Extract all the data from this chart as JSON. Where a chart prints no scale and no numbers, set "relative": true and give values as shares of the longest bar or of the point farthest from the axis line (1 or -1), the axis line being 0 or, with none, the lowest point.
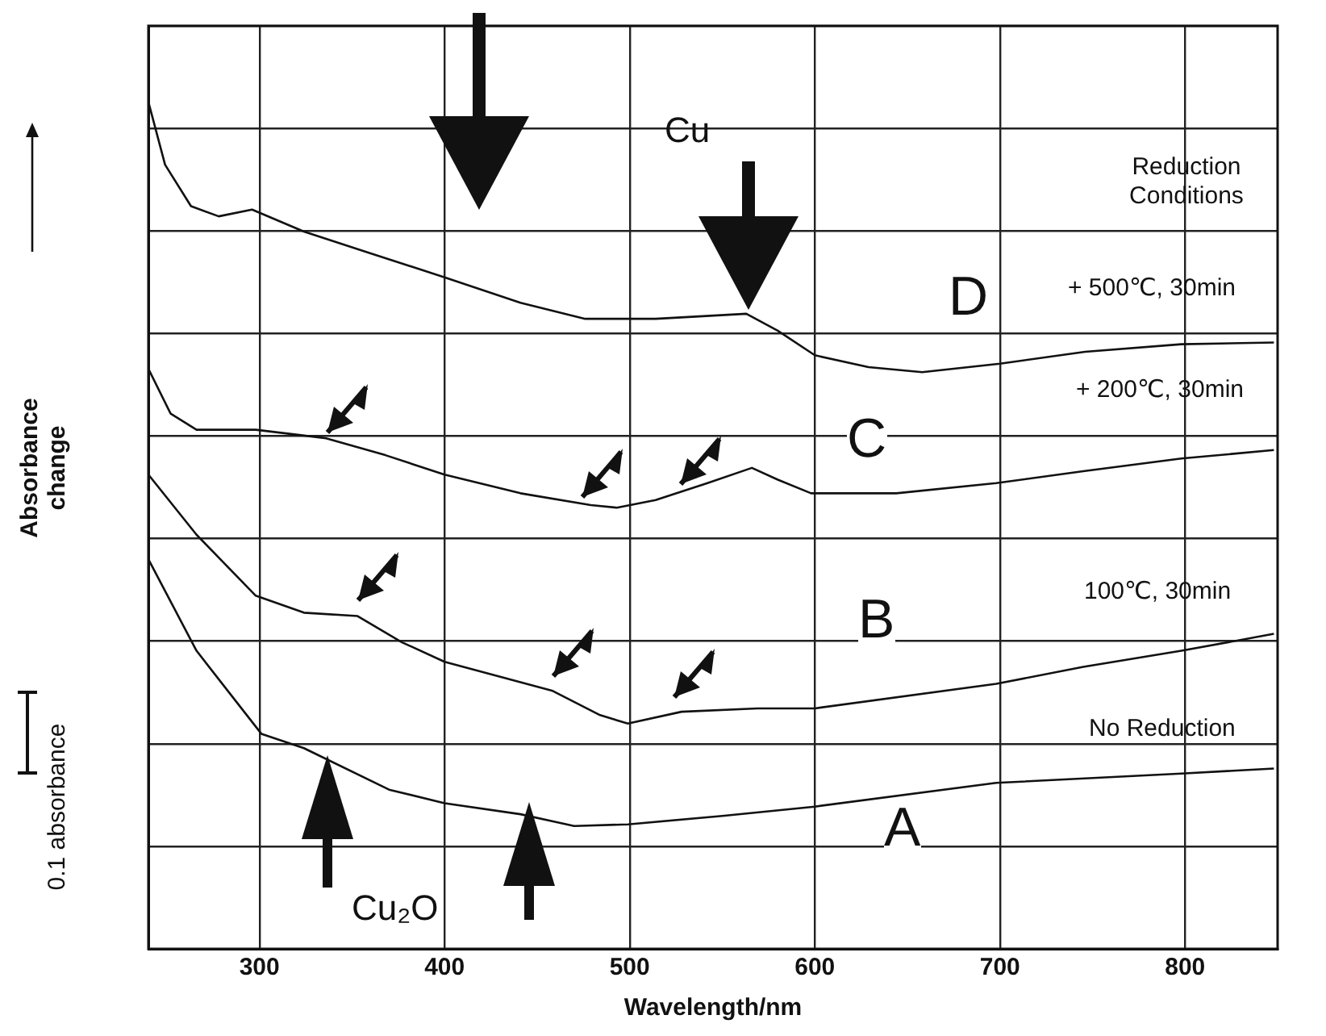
{
  "chart_data": {
    "type": "line",
    "xlabel": "Wavelength/nm",
    "ylabel": "Absorbance change",
    "relative": true,
    "grid": true,
    "xlim": [
      240,
      850
    ],
    "xticks": [
      300,
      400,
      500,
      600,
      700,
      800
    ],
    "series": [
      {
        "name": "A",
        "color": "#111111",
        "x": [
          240,
          266,
          301,
          324,
          370,
          400,
          441,
          470,
          499,
          550,
          600,
          698,
          798,
          848
        ],
        "values": [
          0.46,
          0.352,
          0.254,
          0.237,
          0.188,
          0.172,
          0.159,
          0.145,
          0.147,
          0.157,
          0.168,
          0.196,
          0.207,
          0.213
        ]
      },
      {
        "name": "B",
        "color": "#111111",
        "x": [
          240,
          266,
          298,
          324,
          353,
          377,
          400,
          458,
          484,
          499,
          528,
          569,
          600,
          698,
          745,
          798,
          848
        ],
        "values": [
          0.56,
          0.489,
          0.417,
          0.397,
          0.393,
          0.362,
          0.339,
          0.305,
          0.276,
          0.266,
          0.28,
          0.284,
          0.284,
          0.313,
          0.333,
          0.352,
          0.372
        ]
      },
      {
        "name": "C",
        "color": "#111111",
        "x": [
          240,
          252,
          266,
          298,
          336,
          368,
          400,
          441,
          479,
          493,
          514,
          542,
          566,
          580,
          598,
          644,
          698,
          745,
          798,
          848
        ],
        "values": [
          0.685,
          0.632,
          0.613,
          0.613,
          0.603,
          0.583,
          0.56,
          0.538,
          0.524,
          0.521,
          0.53,
          0.55,
          0.568,
          0.554,
          0.538,
          0.538,
          0.55,
          0.564,
          0.579,
          0.589
        ]
      },
      {
        "name": "D",
        "color": "#111111",
        "x": [
          240,
          249,
          263,
          278,
          296,
          324,
          359,
          400,
          441,
          476,
          514,
          563,
          580,
          600,
          629,
          658,
          700,
          746,
          798,
          848
        ],
        "values": [
          1.0,
          0.926,
          0.877,
          0.865,
          0.873,
          0.847,
          0.822,
          0.793,
          0.763,
          0.744,
          0.744,
          0.75,
          0.73,
          0.701,
          0.687,
          0.681,
          0.691,
          0.705,
          0.714,
          0.716
        ]
      }
    ],
    "annotations": [
      "Cu",
      "Reduction Conditions",
      "+ 500℃, 30min",
      "+ 200℃, 30min",
      "100℃, 30min",
      "No Reduction",
      "Cu₂O",
      "0.1 absorbance"
    ]
  }
}
